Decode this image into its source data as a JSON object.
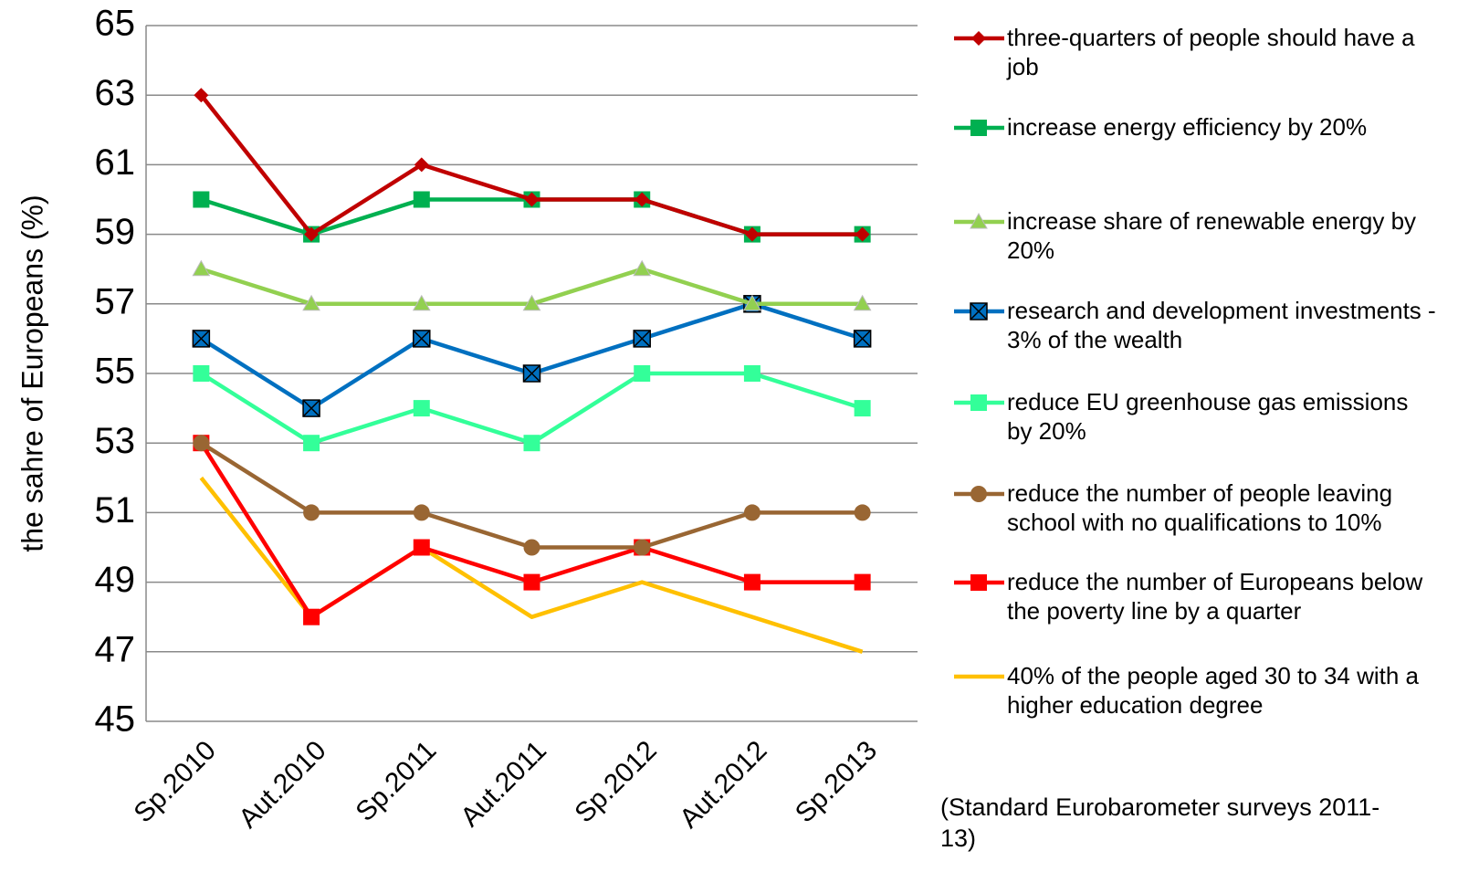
{
  "chart_data": {
    "type": "line",
    "y_label": "the sahre of Europeans (%)",
    "note": "(Standard Eurobarometer surveys 2011-13)",
    "categories": [
      "Sp.2010",
      "Aut.2010",
      "Sp.2011",
      "Aut.2011",
      "Sp.2012",
      "Aut.2012",
      "Sp.2013"
    ],
    "ylim": [
      45,
      65
    ],
    "yticks": [
      45,
      47,
      49,
      51,
      53,
      55,
      57,
      59,
      61,
      63,
      65
    ],
    "grid": true,
    "series": [
      {
        "name": "three-quarters of people should have a job",
        "color": "#C00000",
        "marker": "diamond",
        "values": [
          63,
          59,
          61,
          60,
          60,
          59,
          59
        ]
      },
      {
        "name": "increase energy efficiency by 20%",
        "color": "#00B050",
        "marker": "square",
        "values": [
          60,
          59,
          60,
          60,
          60,
          59,
          59
        ]
      },
      {
        "name": "increase share of renewable energy by 20%",
        "color": "#92D050",
        "marker": "triangle",
        "values": [
          58,
          57,
          57,
          57,
          58,
          57,
          57
        ]
      },
      {
        "name": "research and development investments - 3% of the wealth",
        "color": "#0070C0",
        "marker": "xsquare",
        "values": [
          56,
          54,
          56,
          55,
          56,
          57,
          56
        ]
      },
      {
        "name": "reduce EU greenhouse gas emissions by 20%",
        "color": "#33FF99",
        "marker": "square",
        "values": [
          55,
          53,
          54,
          53,
          55,
          55,
          54
        ]
      },
      {
        "name": "reduce the number of people leaving school with no qualifications to 10%",
        "color": "#996633",
        "marker": "circle",
        "values": [
          53,
          51,
          51,
          50,
          50,
          51,
          51
        ]
      },
      {
        "name": "reduce the number of Europeans below the poverty line by a quarter",
        "color": "#FF0000",
        "marker": "square",
        "values": [
          53,
          48,
          50,
          49,
          50,
          49,
          49
        ]
      },
      {
        "name": "40% of the people aged 30 to 34 with a higher education degree",
        "color": "#FFC000",
        "marker": "none",
        "values": [
          52,
          48,
          50,
          48,
          49,
          48,
          47
        ]
      }
    ]
  }
}
